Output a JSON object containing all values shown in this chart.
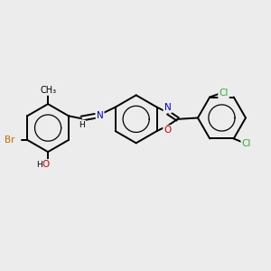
{
  "bg_color": "#ececec",
  "bond_color": "#000000",
  "bond_width": 1.4,
  "atom_colors": {
    "C": "#000000",
    "H": "#000000",
    "N": "#0000ee",
    "O": "#cc0000",
    "Br": "#cc6600",
    "Cl": "#33aa33"
  },
  "font_size": 7.5,
  "aromatic_lw": 0.9
}
